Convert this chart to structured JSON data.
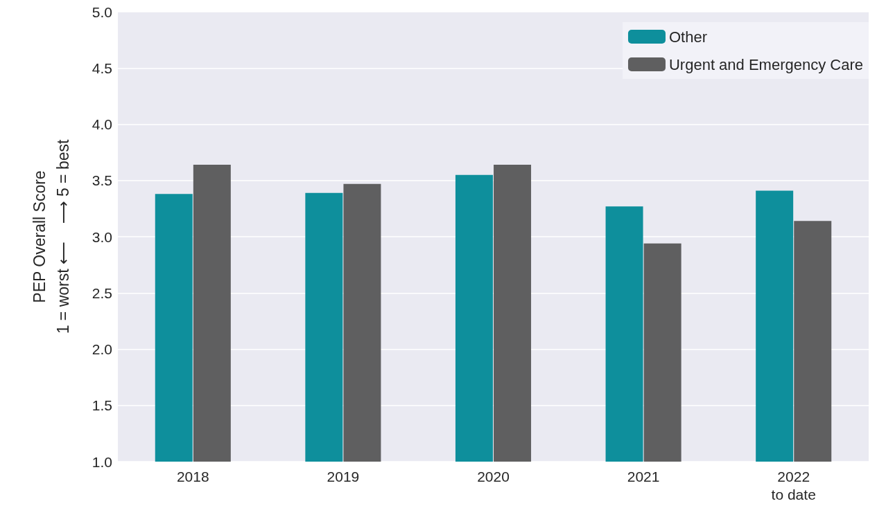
{
  "chart_data": {
    "type": "bar",
    "ylabel": "PEP Overall Score\n1 = worst ⟵    ⟶ 5 = best",
    "categories": [
      "2018",
      "2019",
      "2020",
      "2021",
      "2022\nto date"
    ],
    "series": [
      {
        "name": "Other",
        "color": "#0e8f9c",
        "values": [
          3.38,
          3.39,
          3.55,
          3.27,
          3.41
        ]
      },
      {
        "name": "Urgent and Emergency Care",
        "color": "#5f5f60",
        "values": [
          3.64,
          3.47,
          3.64,
          2.94,
          3.14
        ]
      }
    ],
    "ylim": [
      1,
      5
    ],
    "yticks": [
      {
        "value": 1,
        "label": "1.0"
      },
      {
        "value": 1.5,
        "label": "1.5"
      },
      {
        "value": 2,
        "label": "2.0"
      },
      {
        "value": 2.5,
        "label": "2.5"
      },
      {
        "value": 3,
        "label": "3.0"
      },
      {
        "value": 3.5,
        "label": "3.5"
      },
      {
        "value": 4,
        "label": "4.0"
      },
      {
        "value": 4.5,
        "label": "4.5"
      },
      {
        "value": 5,
        "label": "5.0"
      }
    ],
    "grid": true,
    "legend": "top right"
  }
}
